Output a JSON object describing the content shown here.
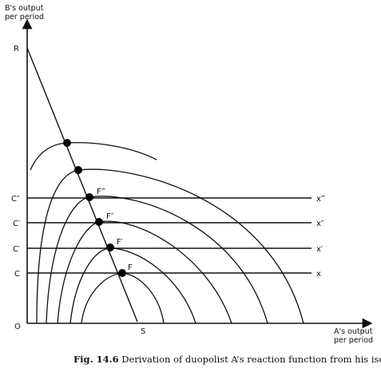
{
  "axes": {
    "y_label_line1": "B's output",
    "y_label_line2": "per period",
    "x_label_line1": "A's output",
    "x_label_line2": "per period",
    "origin": "O"
  },
  "points": {
    "R": "R",
    "S": "S",
    "C": "C",
    "C1": "C′",
    "C2": "C′",
    "C3": "C″",
    "F": "F",
    "F1": "F′",
    "F2": "F″",
    "F3": "F‴"
  },
  "lines": {
    "x": "x",
    "x1": "x′",
    "x2": "x″",
    "x3": "x‴"
  },
  "caption": {
    "number": "Fig. 14.6",
    "text": " Derivation of duopolist A’s reaction function from his isoprofit map"
  }
}
